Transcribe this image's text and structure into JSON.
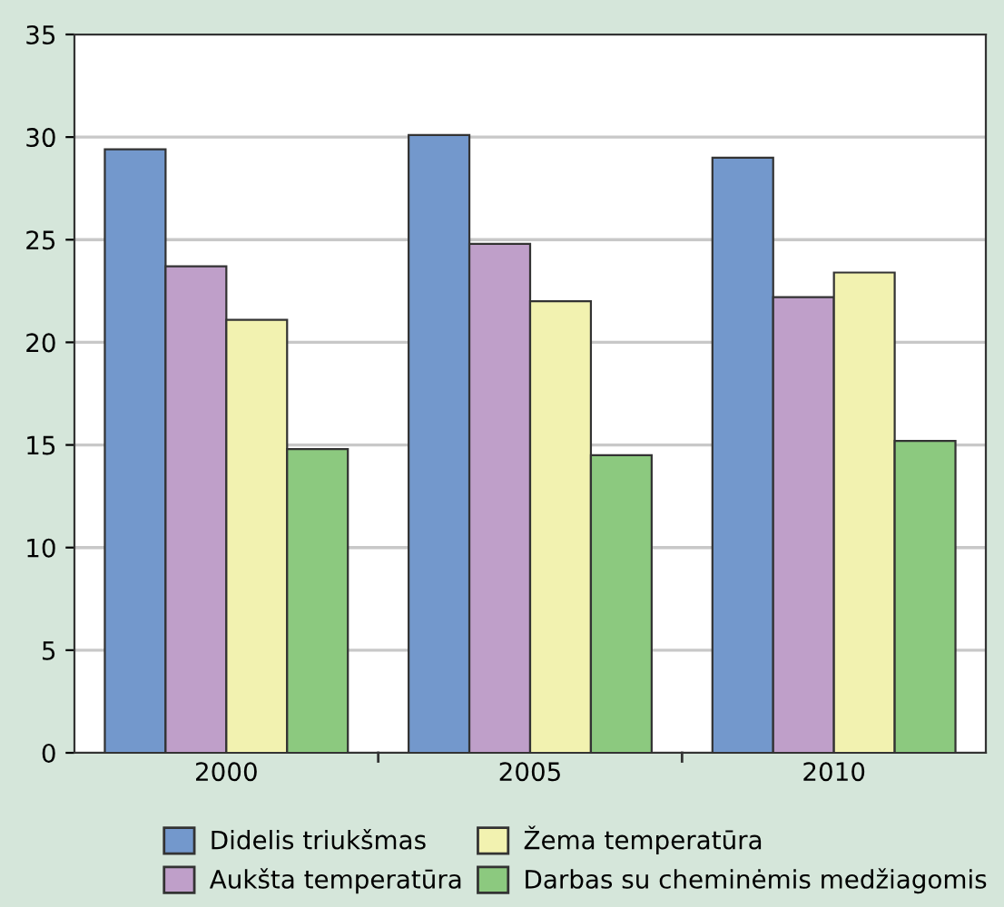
{
  "chart_data": {
    "type": "bar",
    "categories": [
      "2000",
      "2005",
      "2010"
    ],
    "series": [
      {
        "name": "Didelis triukšmas",
        "color": "#7398cc",
        "values": [
          29.4,
          30.1,
          29.0
        ]
      },
      {
        "name": "Aukšta temperatūra",
        "color": "#bf9fc9",
        "values": [
          23.7,
          24.8,
          22.2
        ]
      },
      {
        "name": "Žema temperatūra",
        "color": "#f2f2b0",
        "values": [
          21.1,
          22.0,
          23.4
        ]
      },
      {
        "name": "Darbas su cheminėmis medžiagomis",
        "color": "#8cc97f",
        "values": [
          14.8,
          14.5,
          15.2
        ]
      }
    ],
    "ylim": [
      0,
      35
    ],
    "yticks": [
      0,
      5,
      10,
      15,
      20,
      25,
      30,
      35
    ],
    "grid": "y",
    "legend": "bottom"
  }
}
